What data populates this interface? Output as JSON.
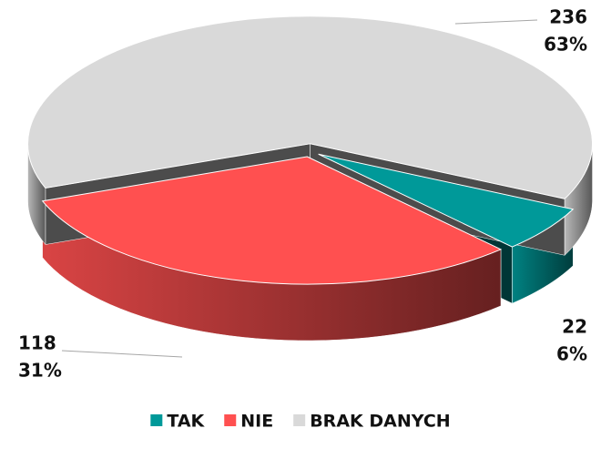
{
  "chart_data": {
    "type": "pie",
    "categories": [
      "TAK",
      "NIE",
      "BRAK DANYCH"
    ],
    "values": [
      22,
      118,
      236
    ],
    "percent_labels": [
      "6%",
      "31%",
      "63%"
    ],
    "colors": [
      "#009999",
      "#ff5050",
      "#d9d9d9"
    ],
    "legend": "bottom"
  }
}
